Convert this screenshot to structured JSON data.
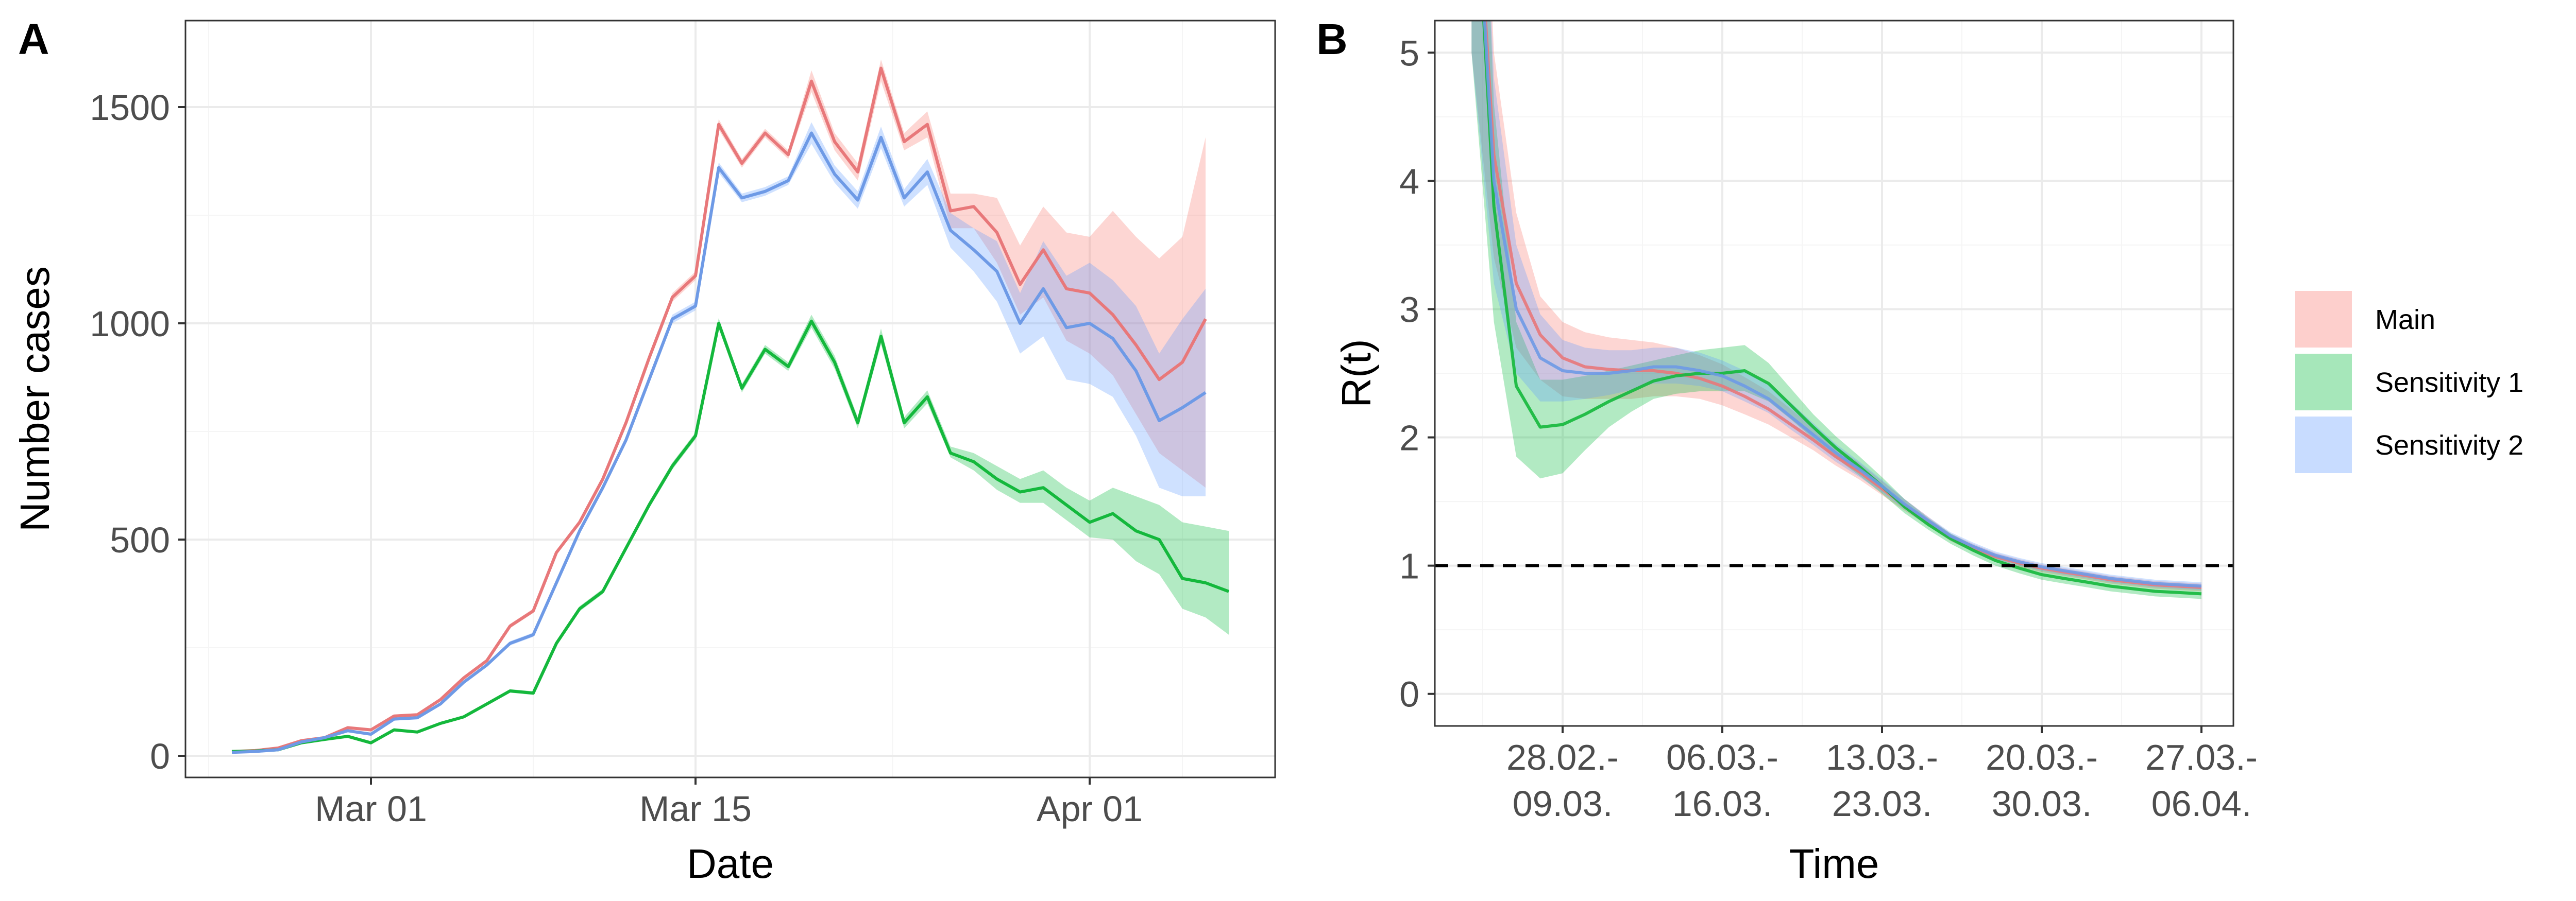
{
  "colors": {
    "main": "#E8787A",
    "sensitivity1": "#14B83C",
    "sensitivity2": "#6E9AE6",
    "main_band": "#F8766D",
    "sensitivity1_band": "#00BA38",
    "sensitivity2_band": "#619CFF",
    "grid_major": "#ebebeb",
    "grid_minor": "#f5f5f5",
    "panel_border": "#333333",
    "dashed_line": "#000000"
  },
  "chart_data": [
    {
      "panel": "A",
      "type": "line",
      "xlabel": "Date",
      "ylabel": "Number cases",
      "x_ticks": [
        {
          "day": 1,
          "label": "Mar 01"
        },
        {
          "day": 15,
          "label": "Mar 15"
        },
        {
          "day": 32,
          "label": "Apr 01"
        }
      ],
      "xlim": [
        -7,
        40
      ],
      "ylim": [
        -50,
        1700
      ],
      "y_ticks": [
        0,
        500,
        1000,
        1500
      ],
      "x_start_day": -5,
      "series": [
        {
          "key": "main",
          "values": [
            10,
            12,
            18,
            35,
            42,
            65,
            60,
            92,
            95,
            130,
            180,
            220,
            300,
            335,
            470,
            540,
            640,
            770,
            920,
            1060,
            1110,
            1460,
            1370,
            1440,
            1390,
            1560,
            1420,
            1350,
            1590,
            1420,
            1460,
            1260,
            1270,
            1210,
            1090,
            1170,
            1080,
            1070,
            1020,
            950,
            870,
            910,
            1010
          ],
          "lower": [
            10,
            12,
            18,
            35,
            42,
            62,
            57,
            90,
            93,
            127,
            176,
            216,
            295,
            330,
            465,
            534,
            633,
            763,
            912,
            1050,
            1100,
            1448,
            1360,
            1430,
            1380,
            1535,
            1400,
            1330,
            1560,
            1400,
            1430,
            1220,
            1220,
            1140,
            1020,
            1060,
            960,
            930,
            880,
            790,
            700,
            660,
            620
          ],
          "upper": [
            10,
            12,
            18,
            35,
            42,
            68,
            63,
            94,
            97,
            133,
            184,
            224,
            305,
            340,
            475,
            546,
            647,
            777,
            928,
            1070,
            1120,
            1472,
            1380,
            1450,
            1400,
            1585,
            1440,
            1370,
            1610,
            1440,
            1490,
            1300,
            1300,
            1290,
            1180,
            1270,
            1210,
            1200,
            1260,
            1200,
            1150,
            1200,
            1430
          ]
        },
        {
          "key": "sensitivity1",
          "values": [
            10,
            11,
            14,
            30,
            38,
            45,
            30,
            60,
            55,
            75,
            90,
            120,
            150,
            145,
            260,
            340,
            380,
            480,
            580,
            670,
            740,
            1000,
            850,
            940,
            900,
            1005,
            910,
            770,
            970,
            770,
            830,
            700,
            680,
            640,
            610,
            620,
            580,
            540,
            560,
            520,
            500,
            410,
            400,
            380
          ],
          "lower": [
            10,
            11,
            14,
            30,
            38,
            43,
            28,
            58,
            53,
            72,
            87,
            117,
            146,
            141,
            255,
            334,
            374,
            473,
            572,
            662,
            732,
            988,
            840,
            930,
            890,
            990,
            895,
            757,
            952,
            757,
            815,
            690,
            660,
            615,
            585,
            585,
            545,
            505,
            500,
            450,
            420,
            340,
            320,
            280
          ],
          "upper": [
            10,
            11,
            14,
            30,
            38,
            47,
            32,
            62,
            57,
            78,
            93,
            123,
            154,
            149,
            265,
            346,
            386,
            487,
            588,
            678,
            748,
            1012,
            860,
            950,
            910,
            1020,
            925,
            783,
            988,
            783,
            845,
            715,
            700,
            670,
            640,
            660,
            620,
            590,
            620,
            600,
            580,
            540,
            530,
            520
          ]
        },
        {
          "key": "sensitivity2",
          "values": [
            8,
            10,
            14,
            32,
            42,
            58,
            50,
            85,
            88,
            120,
            170,
            210,
            260,
            280,
            400,
            520,
            620,
            730,
            870,
            1010,
            1040,
            1360,
            1290,
            1305,
            1330,
            1440,
            1345,
            1285,
            1430,
            1290,
            1350,
            1215,
            1170,
            1120,
            1000,
            1080,
            990,
            1000,
            965,
            890,
            775,
            805,
            840
          ],
          "lower": [
            8,
            10,
            14,
            32,
            42,
            55,
            48,
            83,
            86,
            117,
            166,
            206,
            255,
            275,
            395,
            514,
            613,
            723,
            862,
            1000,
            1030,
            1348,
            1280,
            1295,
            1320,
            1415,
            1325,
            1265,
            1405,
            1270,
            1320,
            1175,
            1120,
            1050,
            930,
            970,
            870,
            860,
            830,
            740,
            620,
            600,
            600
          ],
          "upper": [
            8,
            10,
            14,
            32,
            42,
            61,
            52,
            87,
            90,
            123,
            174,
            214,
            265,
            285,
            405,
            526,
            627,
            737,
            878,
            1020,
            1050,
            1372,
            1300,
            1315,
            1340,
            1465,
            1365,
            1305,
            1455,
            1310,
            1380,
            1255,
            1220,
            1190,
            1070,
            1190,
            1110,
            1140,
            1100,
            1040,
            930,
            1010,
            1080
          ]
        }
      ]
    },
    {
      "panel": "B",
      "type": "line",
      "xlabel": "Time",
      "ylabel": "R(t)",
      "ylim": [
        -0.25,
        5.25
      ],
      "y_ticks": [
        0,
        1,
        2,
        3,
        4,
        5
      ],
      "xlim": [
        -0.8,
        4.2
      ],
      "x_ticks": [
        {
          "pos": 0,
          "line1": "28.02.-",
          "line2": "09.03."
        },
        {
          "pos": 1,
          "line1": "06.03.-",
          "line2": "16.03."
        },
        {
          "pos": 2,
          "line1": "13.03.-",
          "line2": "23.03."
        },
        {
          "pos": 3,
          "line1": "20.03.-",
          "line2": "30.03."
        },
        {
          "pos": 4,
          "line1": "27.03.-",
          "line2": "06.04."
        }
      ],
      "reference_line": 1,
      "series": [
        {
          "key": "main",
          "x": [
            -0.57,
            -0.43,
            -0.29,
            -0.14,
            0,
            0.14,
            0.29,
            0.43,
            0.57,
            0.71,
            0.86,
            1,
            1.14,
            1.29,
            1.43,
            1.57,
            1.71,
            1.86,
            2,
            2.14,
            2.29,
            2.43,
            2.57,
            2.71,
            2.86,
            3,
            3.14,
            3.29,
            3.43,
            3.57,
            3.71,
            3.86,
            4
          ],
          "values": [
            7.0,
            4.2,
            3.2,
            2.8,
            2.62,
            2.55,
            2.53,
            2.52,
            2.52,
            2.5,
            2.46,
            2.4,
            2.32,
            2.22,
            2.1,
            1.98,
            1.85,
            1.73,
            1.6,
            1.47,
            1.34,
            1.22,
            1.14,
            1.07,
            1.02,
            0.98,
            0.95,
            0.92,
            0.89,
            0.87,
            0.85,
            0.84,
            0.83
          ],
          "lower": [
            5.0,
            3.4,
            2.7,
            2.45,
            2.32,
            2.3,
            2.3,
            2.3,
            2.32,
            2.32,
            2.3,
            2.25,
            2.18,
            2.1,
            2.0,
            1.9,
            1.78,
            1.67,
            1.55,
            1.43,
            1.31,
            1.19,
            1.11,
            1.04,
            0.99,
            0.95,
            0.92,
            0.89,
            0.86,
            0.84,
            0.82,
            0.81,
            0.8
          ],
          "upper": [
            9.0,
            5.0,
            3.75,
            3.1,
            2.9,
            2.82,
            2.78,
            2.76,
            2.74,
            2.7,
            2.64,
            2.57,
            2.47,
            2.36,
            2.22,
            2.08,
            1.93,
            1.8,
            1.66,
            1.52,
            1.38,
            1.25,
            1.17,
            1.1,
            1.05,
            1.01,
            0.98,
            0.95,
            0.92,
            0.9,
            0.88,
            0.87,
            0.86
          ]
        },
        {
          "key": "sensitivity1",
          "x": [
            -0.57,
            -0.43,
            -0.29,
            -0.14,
            0,
            0.14,
            0.29,
            0.43,
            0.57,
            0.71,
            0.86,
            1,
            1.14,
            1.29,
            1.43,
            1.57,
            1.71,
            1.86,
            2,
            2.14,
            2.29,
            2.43,
            2.57,
            2.71,
            2.86,
            3,
            3.14,
            3.29,
            3.43,
            3.57,
            3.71,
            3.86,
            4
          ],
          "values": [
            7.0,
            3.8,
            2.4,
            2.08,
            2.1,
            2.18,
            2.28,
            2.36,
            2.44,
            2.48,
            2.5,
            2.5,
            2.52,
            2.42,
            2.25,
            2.08,
            1.92,
            1.77,
            1.62,
            1.46,
            1.32,
            1.21,
            1.12,
            1.04,
            0.98,
            0.93,
            0.9,
            0.87,
            0.84,
            0.82,
            0.8,
            0.79,
            0.78
          ],
          "lower": [
            5.0,
            2.9,
            1.85,
            1.68,
            1.72,
            1.9,
            2.08,
            2.2,
            2.3,
            2.34,
            2.36,
            2.36,
            2.36,
            2.28,
            2.14,
            1.99,
            1.84,
            1.7,
            1.56,
            1.41,
            1.28,
            1.17,
            1.08,
            1.0,
            0.94,
            0.89,
            0.86,
            0.83,
            0.8,
            0.78,
            0.76,
            0.75,
            0.74
          ],
          "upper": [
            9.0,
            4.6,
            2.9,
            2.45,
            2.45,
            2.48,
            2.52,
            2.56,
            2.6,
            2.64,
            2.68,
            2.7,
            2.72,
            2.58,
            2.38,
            2.18,
            2.01,
            1.85,
            1.69,
            1.52,
            1.37,
            1.25,
            1.16,
            1.08,
            1.02,
            0.97,
            0.94,
            0.91,
            0.88,
            0.86,
            0.84,
            0.83,
            0.82
          ]
        },
        {
          "key": "sensitivity2",
          "x": [
            -0.57,
            -0.43,
            -0.29,
            -0.14,
            0,
            0.14,
            0.29,
            0.43,
            0.57,
            0.71,
            0.86,
            1,
            1.14,
            1.29,
            1.43,
            1.57,
            1.71,
            1.86,
            2,
            2.14,
            2.29,
            2.43,
            2.57,
            2.71,
            2.86,
            3,
            3.14,
            3.29,
            3.43,
            3.57,
            3.71,
            3.86,
            4
          ],
          "values": [
            7.0,
            4.0,
            3.0,
            2.62,
            2.52,
            2.5,
            2.5,
            2.52,
            2.55,
            2.55,
            2.52,
            2.48,
            2.4,
            2.3,
            2.16,
            2.02,
            1.88,
            1.75,
            1.62,
            1.48,
            1.35,
            1.23,
            1.15,
            1.08,
            1.03,
            0.99,
            0.96,
            0.93,
            0.9,
            0.88,
            0.86,
            0.85,
            0.84
          ],
          "lower": [
            5.0,
            3.2,
            2.5,
            2.28,
            2.28,
            2.3,
            2.33,
            2.37,
            2.42,
            2.42,
            2.4,
            2.36,
            2.28,
            2.19,
            2.06,
            1.94,
            1.81,
            1.69,
            1.57,
            1.44,
            1.32,
            1.2,
            1.12,
            1.05,
            1.0,
            0.96,
            0.93,
            0.9,
            0.87,
            0.85,
            0.83,
            0.82,
            0.81
          ],
          "upper": [
            9.0,
            4.8,
            3.5,
            2.96,
            2.76,
            2.7,
            2.68,
            2.68,
            2.7,
            2.7,
            2.66,
            2.6,
            2.52,
            2.42,
            2.27,
            2.11,
            1.95,
            1.81,
            1.67,
            1.52,
            1.38,
            1.26,
            1.18,
            1.11,
            1.06,
            1.02,
            0.99,
            0.96,
            0.93,
            0.91,
            0.89,
            0.88,
            0.87
          ]
        }
      ]
    }
  ],
  "legend": {
    "entries": [
      {
        "key": "main",
        "label": "Main"
      },
      {
        "key": "sensitivity1",
        "label": "Sensitivity 1"
      },
      {
        "key": "sensitivity2",
        "label": "Sensitivity 2"
      }
    ]
  }
}
